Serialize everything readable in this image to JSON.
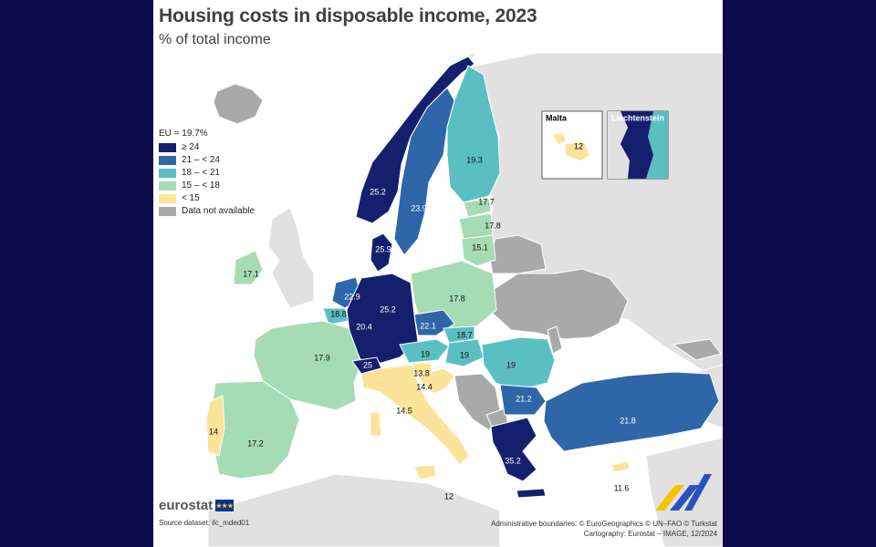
{
  "title": "Housing costs in disposable income, 2023",
  "subtitle": "% of total income",
  "legend": {
    "header": "EU = 19.7%",
    "classes": [
      {
        "label": "≥ 24",
        "color": "#14206e"
      },
      {
        "label": "21 – < 24",
        "color": "#2f66a8"
      },
      {
        "label": "18 – < 21",
        "color": "#5bbfc2"
      },
      {
        "label": "15 – < 18",
        "color": "#a6dcb3"
      },
      {
        "label": "< 15",
        "color": "#fbe49a"
      },
      {
        "label": "Data not available",
        "color": "#a9a9a9"
      }
    ]
  },
  "colors": {
    "background_frame": "#0b0b4a",
    "sea": "#ffffff",
    "non_eu_land": "#e1e1e1",
    "no_data": "#a9a9a9",
    "border": "#ffffff"
  },
  "map_values": [
    {
      "value": "25.2",
      "class": 0,
      "label_color": "#ffffff"
    },
    {
      "value": "23.9",
      "class": 1,
      "label_color": "#ffffff"
    },
    {
      "value": "19.3",
      "class": 2,
      "label_color": "#111111"
    },
    {
      "value": "17.7",
      "class": 3,
      "label_color": "#111111"
    },
    {
      "value": "17.8",
      "class": 3,
      "label_color": "#111111"
    },
    {
      "value": "15.1",
      "class": 3,
      "label_color": "#111111"
    },
    {
      "value": "25.9",
      "class": 0,
      "label_color": "#ffffff"
    },
    {
      "value": "17.1",
      "class": 3,
      "label_color": "#111111"
    },
    {
      "value": "22.9",
      "class": 1,
      "label_color": "#ffffff"
    },
    {
      "value": "18.8",
      "class": 2,
      "label_color": "#111111"
    },
    {
      "value": "20.4",
      "class": 2,
      "label_color": "#ffffff"
    },
    {
      "value": "25.2",
      "class": 0,
      "label_color": "#ffffff"
    },
    {
      "value": "17.8",
      "class": 3,
      "label_color": "#111111"
    },
    {
      "value": "22.1",
      "class": 1,
      "label_color": "#ffffff"
    },
    {
      "value": "18.7",
      "class": 2,
      "label_color": "#111111"
    },
    {
      "value": "19",
      "class": 2,
      "label_color": "#111111"
    },
    {
      "value": "19",
      "class": 2,
      "label_color": "#111111"
    },
    {
      "value": "19",
      "class": 2,
      "label_color": "#111111"
    },
    {
      "value": "17.9",
      "class": 3,
      "label_color": "#111111"
    },
    {
      "value": "25",
      "class": 0,
      "label_color": "#ffffff"
    },
    {
      "value": "13.8",
      "class": 4,
      "label_color": "#111111"
    },
    {
      "value": "14.4",
      "class": 4,
      "label_color": "#111111"
    },
    {
      "value": "14.5",
      "class": 4,
      "label_color": "#111111"
    },
    {
      "value": "21.2",
      "class": 1,
      "label_color": "#ffffff"
    },
    {
      "value": "21.8",
      "class": 1,
      "label_color": "#ffffff"
    },
    {
      "value": "14",
      "class": 4,
      "label_color": "#111111"
    },
    {
      "value": "17.2",
      "class": 3,
      "label_color": "#111111"
    },
    {
      "value": "35.2",
      "class": 0,
      "label_color": "#ffffff"
    },
    {
      "value": "12",
      "class": 4,
      "label_color": "#111111"
    },
    {
      "value": "11.6",
      "class": 4,
      "label_color": "#111111"
    }
  ],
  "insets": {
    "malta": {
      "name": "Malta",
      "value": "12"
    },
    "liechtenstein": {
      "name": "Liechtenstein"
    }
  },
  "footer": {
    "brand": "eurostat",
    "source": "Source dataset: ilc_mded01",
    "credit_line1": "Administrative boundaries: © EuroGeographics © UN–FAO © Turkstat",
    "credit_line2": "Cartography: Eurostat – IMAGE, 12/2024"
  }
}
